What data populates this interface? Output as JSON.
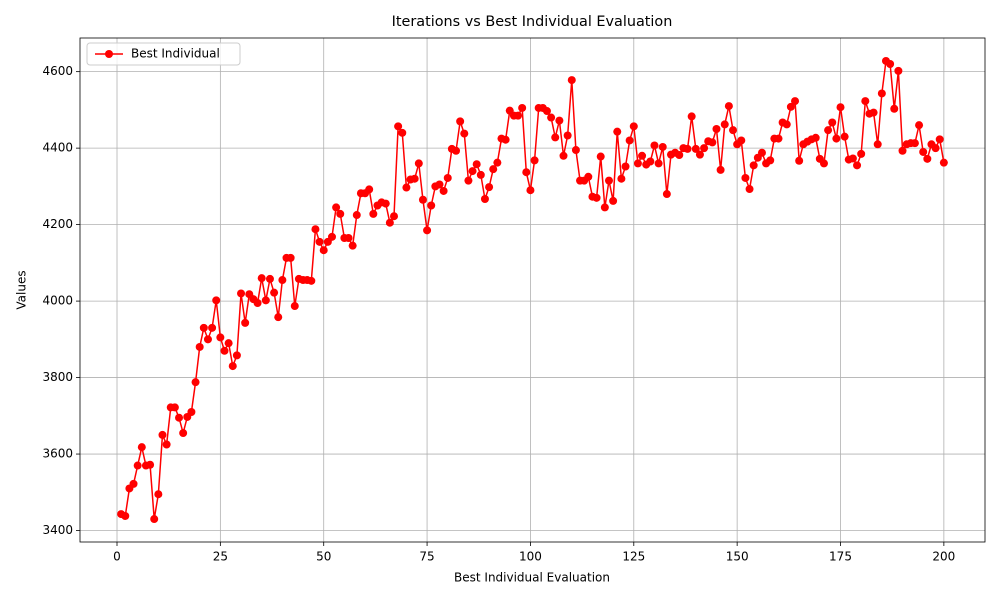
{
  "chart_data": {
    "type": "line",
    "title": "Iterations vs Best Individual Evaluation",
    "xlabel": "Best Individual Evaluation",
    "ylabel": "Values",
    "x": [
      1,
      2,
      3,
      4,
      5,
      6,
      7,
      8,
      9,
      10,
      11,
      12,
      13,
      14,
      15,
      16,
      17,
      18,
      19,
      20,
      21,
      22,
      23,
      24,
      25,
      26,
      27,
      28,
      29,
      30,
      31,
      32,
      33,
      34,
      35,
      36,
      37,
      38,
      39,
      40,
      41,
      42,
      43,
      44,
      45,
      46,
      47,
      48,
      49,
      50,
      51,
      52,
      53,
      54,
      55,
      56,
      57,
      58,
      59,
      60,
      61,
      62,
      63,
      64,
      65,
      66,
      67,
      68,
      69,
      70,
      71,
      72,
      73,
      74,
      75,
      76,
      77,
      78,
      79,
      80,
      81,
      82,
      83,
      84,
      85,
      86,
      87,
      88,
      89,
      90,
      91,
      92,
      93,
      94,
      95,
      96,
      97,
      98,
      99,
      100,
      101,
      102,
      103,
      104,
      105,
      106,
      107,
      108,
      109,
      110,
      111,
      112,
      113,
      114,
      115,
      116,
      117,
      118,
      119,
      120,
      121,
      122,
      123,
      124,
      125,
      126,
      127,
      128,
      129,
      130,
      131,
      132,
      133,
      134,
      135,
      136,
      137,
      138,
      139,
      140,
      141,
      142,
      143,
      144,
      145,
      146,
      147,
      148,
      149,
      150,
      151,
      152,
      153,
      154,
      155,
      156,
      157,
      158,
      159,
      160,
      161,
      162,
      163,
      164,
      165,
      166,
      167,
      168,
      169,
      170,
      171,
      172,
      173,
      174,
      175,
      176,
      177,
      178,
      179,
      180,
      181,
      182,
      183,
      184,
      185,
      186,
      187,
      188,
      189,
      190,
      191,
      192,
      193,
      194,
      195,
      196,
      197,
      198,
      199,
      200
    ],
    "series": [
      {
        "name": "Best Individual",
        "color": "#ff0000",
        "marker": "circle",
        "values": [
          3443,
          3438,
          3510,
          3522,
          3570,
          3618,
          3570,
          3572,
          3430,
          3495,
          3650,
          3625,
          3722,
          3722,
          3695,
          3655,
          3697,
          3710,
          3788,
          3880,
          3930,
          3900,
          3930,
          4002,
          3905,
          3870,
          3890,
          3830,
          3858,
          4020,
          3943,
          4018,
          4005,
          3995,
          4060,
          4002,
          4058,
          4022,
          3958,
          4055,
          4113,
          4113,
          3987,
          4058,
          4055,
          4055,
          4053,
          4188,
          4155,
          4133,
          4155,
          4168,
          4245,
          4228,
          4165,
          4165,
          4145,
          4225,
          4282,
          4282,
          4292,
          4228,
          4250,
          4258,
          4255,
          4205,
          4222,
          4457,
          4440,
          4297,
          4318,
          4320,
          4360,
          4265,
          4185,
          4250,
          4300,
          4305,
          4288,
          4322,
          4398,
          4393,
          4470,
          4438,
          4315,
          4340,
          4358,
          4330,
          4267,
          4298,
          4345,
          4362,
          4425,
          4422,
          4498,
          4485,
          4485,
          4505,
          4337,
          4290,
          4368,
          4505,
          4505,
          4497,
          4480,
          4428,
          4472,
          4380,
          4433,
          4578,
          4395,
          4315,
          4315,
          4325,
          4273,
          4270,
          4378,
          4245,
          4315,
          4262,
          4443,
          4320,
          4352,
          4420,
          4457,
          4360,
          4380,
          4357,
          4365,
          4407,
          4360,
          4403,
          4280,
          4383,
          4388,
          4382,
          4400,
          4398,
          4483,
          4398,
          4383,
          4400,
          4418,
          4415,
          4450,
          4343,
          4462,
          4510,
          4447,
          4410,
          4420,
          4322,
          4293,
          4355,
          4375,
          4388,
          4360,
          4368,
          4425,
          4425,
          4467,
          4462,
          4508,
          4523,
          4367,
          4410,
          4417,
          4423,
          4427,
          4372,
          4360,
          4447,
          4467,
          4425,
          4507,
          4430,
          4370,
          4373,
          4355,
          4385,
          4523,
          4490,
          4493,
          4410,
          4543,
          4628,
          4620,
          4503,
          4602,
          4393,
          4410,
          4413,
          4413,
          4460,
          4390,
          4372,
          4410,
          4400,
          4423,
          4362
        ]
      }
    ],
    "xlim": [
      -8.95,
      209.95
    ],
    "ylim": [
      3370,
      4688
    ],
    "xticks": [
      0,
      25,
      50,
      75,
      100,
      125,
      150,
      175,
      200
    ],
    "yticks": [
      3400,
      3600,
      3800,
      4000,
      4200,
      4400,
      4600
    ],
    "grid": true,
    "legend": "upper left"
  }
}
